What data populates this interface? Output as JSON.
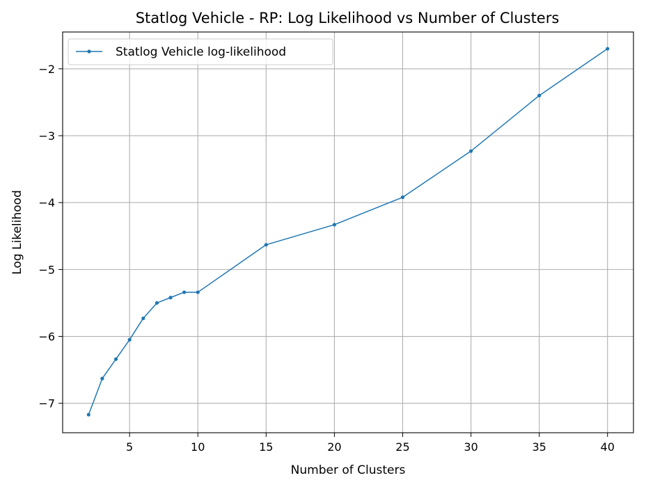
{
  "chart_data": {
    "type": "line",
    "title": "Statlog Vehicle - RP: Log Likelihood vs Number of Clusters",
    "xlabel": "Number of Clusters",
    "ylabel": "Log Likelihood",
    "xlim": [
      0.1,
      41.9
    ],
    "ylim": [
      -7.44,
      -1.45
    ],
    "xticks": [
      5,
      10,
      15,
      20,
      25,
      30,
      35,
      40
    ],
    "yticks": [
      -7,
      -6,
      -5,
      -4,
      -3,
      -2
    ],
    "xtick_labels": [
      "5",
      "10",
      "15",
      "20",
      "25",
      "30",
      "35",
      "40"
    ],
    "ytick_labels": [
      "−7",
      "−6",
      "−5",
      "−4",
      "−3",
      "−2"
    ],
    "grid": true,
    "legend_position": "top-left",
    "color": "#1f77b4",
    "series": [
      {
        "name": "Statlog Vehicle log-likelihood",
        "x": [
          2,
          3,
          4,
          5,
          6,
          7,
          8,
          9,
          10,
          15,
          20,
          25,
          30,
          35,
          40
        ],
        "y": [
          -7.17,
          -6.63,
          -6.34,
          -6.05,
          -5.73,
          -5.5,
          -5.42,
          -5.34,
          -5.34,
          -4.63,
          -4.33,
          -3.92,
          -3.23,
          -2.4,
          -1.7
        ]
      }
    ]
  }
}
